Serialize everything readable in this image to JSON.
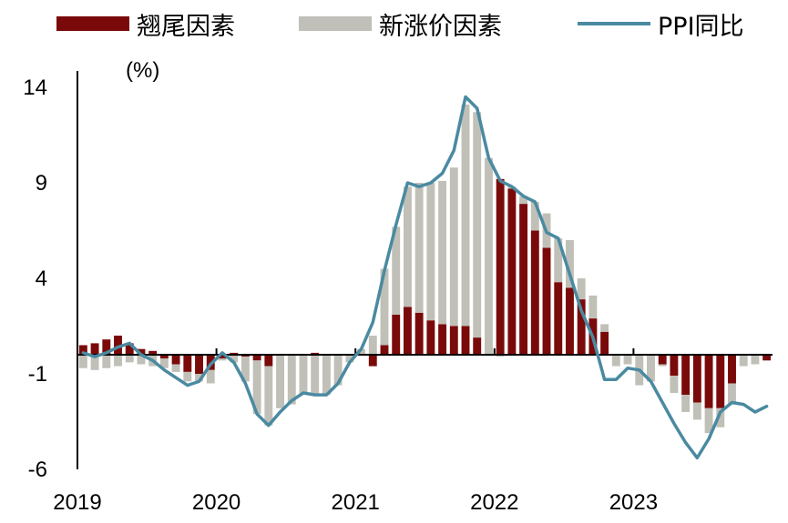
{
  "chart_data": {
    "type": "bar",
    "title": "",
    "ylabel": "(%)",
    "xlabel": "",
    "ylim": [
      -6,
      14
    ],
    "yticks": [
      14,
      9,
      4,
      -1,
      -6
    ],
    "ytick_labels": [
      "14",
      "9",
      "4",
      "-1",
      "-6"
    ],
    "xtick_labels": [
      "2019",
      "2020",
      "2021",
      "2022",
      "2023"
    ],
    "x_start": "2019-01",
    "x_end": "2023-12",
    "series": [
      {
        "name": "翘尾因素",
        "type": "stacked-bar",
        "color": "#7a0a0a",
        "values": [
          0.5,
          0.6,
          0.8,
          1.0,
          0.6,
          0.3,
          0.2,
          -0.2,
          -0.5,
          -0.9,
          -1.0,
          -0.8,
          -0.2,
          0.1,
          -0.1,
          -0.3,
          -0.6,
          0.0,
          0.0,
          0.0,
          0.1,
          0.0,
          0.0,
          0.0,
          0.0,
          -0.6,
          0.5,
          2.1,
          2.5,
          2.2,
          1.8,
          1.6,
          1.5,
          1.5,
          0.9,
          0.0,
          9.2,
          8.7,
          7.9,
          6.5,
          5.6,
          3.8,
          3.5,
          2.9,
          1.9,
          1.2,
          0.0,
          0.0,
          0.0,
          0.0,
          -0.5,
          -1.1,
          -2.1,
          -2.5,
          -2.8,
          -2.8,
          -1.5,
          0.0,
          0.0,
          -0.3
        ]
      },
      {
        "name": "新涨价因素",
        "type": "stacked-bar",
        "color": "#c0c0b8",
        "values": [
          -0.7,
          -0.8,
          -0.7,
          -0.6,
          -0.4,
          -0.5,
          -0.6,
          -0.5,
          -0.4,
          -0.5,
          -0.4,
          -0.7,
          -0.1,
          -0.4,
          -1.3,
          -2.8,
          -3.1,
          -2.8,
          -2.6,
          -2.1,
          -2.1,
          -2.1,
          -1.6,
          -0.4,
          0.3,
          1.0,
          4.0,
          4.6,
          6.3,
          6.8,
          7.2,
          7.5,
          8.3,
          11.6,
          11.8,
          10.3,
          -0.1,
          0.1,
          0.4,
          1.5,
          1.8,
          2.3,
          2.5,
          1.1,
          1.2,
          0.4,
          -0.6,
          -0.5,
          -1.6,
          -1.4,
          -0.1,
          -0.9,
          -0.9,
          -0.9,
          -1.3,
          -1.0,
          -1.1,
          -0.6,
          -0.5,
          0.0
        ]
      },
      {
        "name": "PPI同比",
        "type": "line",
        "color": "#4a8aa1",
        "values": [
          0.1,
          -0.1,
          0.1,
          0.4,
          0.6,
          0.0,
          -0.3,
          -0.8,
          -1.2,
          -1.6,
          -1.4,
          -0.5,
          0.1,
          -0.4,
          -1.5,
          -3.1,
          -3.7,
          -3.0,
          -2.4,
          -2.0,
          -2.1,
          -2.1,
          -1.5,
          -0.4,
          0.3,
          1.7,
          4.4,
          6.8,
          9.0,
          8.8,
          9.0,
          9.5,
          10.7,
          13.5,
          12.9,
          10.3,
          9.1,
          8.8,
          8.3,
          8.0,
          6.4,
          6.1,
          4.2,
          2.3,
          0.9,
          -1.3,
          -1.3,
          -0.7,
          -0.8,
          -1.4,
          -2.5,
          -3.6,
          -4.6,
          -5.4,
          -4.4,
          -3.0,
          -2.5,
          -2.6,
          -3.0,
          -2.7
        ]
      }
    ],
    "legend_position": "top"
  }
}
